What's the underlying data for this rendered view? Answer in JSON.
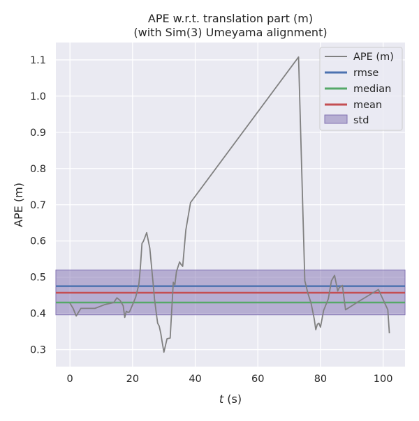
{
  "chart_data": {
    "type": "line",
    "title_line1": "APE w.r.t. translation part (m)",
    "title_line2": "(with Sim(3) Umeyama alignment)",
    "xlabel_italic": "t",
    "xlabel_rest": " (s)",
    "ylabel": "APE (m)",
    "xlim": [
      -4.5,
      107
    ],
    "ylim": [
      0.253,
      1.148
    ],
    "xticks": [
      0,
      20,
      40,
      60,
      80,
      100
    ],
    "yticks": [
      0.3,
      0.4,
      0.5,
      0.6,
      0.7,
      0.8,
      0.9,
      1.0,
      1.1
    ],
    "ytick_labels": [
      "0.3",
      "0.4",
      "0.5",
      "0.6",
      "0.7",
      "0.8",
      "0.9",
      "1.0",
      "1.1"
    ],
    "grid": true,
    "legend_position": "top-right",
    "colors": {
      "background": "#eaeaf2",
      "grid": "#ffffff",
      "ape": "#808080",
      "rmse": "#4c72b0",
      "median": "#55a868",
      "mean": "#c44e52",
      "std": "#8172b2"
    },
    "series": [
      {
        "name": "APE (m)",
        "x": [
          0,
          1,
          2,
          3.5,
          8,
          11,
          13,
          14,
          15,
          16,
          17,
          17.5,
          18,
          18.5,
          19,
          20,
          21,
          22,
          22.5,
          23,
          23.5,
          24.5,
          25.5,
          26.5,
          27,
          27.5,
          28,
          28.5,
          29,
          29.5,
          30,
          31,
          32,
          33,
          33.5,
          34,
          35,
          35.5,
          36,
          37,
          38.5,
          73,
          75,
          76,
          77,
          78,
          78.5,
          79,
          79.5,
          80,
          81,
          82.5,
          83.5,
          84.5,
          85.5,
          86,
          87,
          88,
          92,
          98.5,
          101.5,
          102
        ],
        "y": [
          0.428,
          0.414,
          0.393,
          0.414,
          0.414,
          0.424,
          0.428,
          0.43,
          0.443,
          0.436,
          0.421,
          0.389,
          0.406,
          0.403,
          0.404,
          0.424,
          0.445,
          0.48,
          0.528,
          0.593,
          0.6,
          0.623,
          0.58,
          0.488,
          0.44,
          0.405,
          0.373,
          0.365,
          0.345,
          0.318,
          0.293,
          0.33,
          0.332,
          0.486,
          0.479,
          0.515,
          0.542,
          0.535,
          0.53,
          0.63,
          0.706,
          1.108,
          0.49,
          0.455,
          0.428,
          0.385,
          0.355,
          0.37,
          0.373,
          0.362,
          0.408,
          0.44,
          0.49,
          0.505,
          0.462,
          0.471,
          0.477,
          0.41,
          0.432,
          0.466,
          0.41,
          0.345
        ]
      },
      {
        "name": "rmse",
        "value": 0.475
      },
      {
        "name": "median",
        "value": 0.43
      },
      {
        "name": "mean",
        "value": 0.457
      },
      {
        "name": "std",
        "range": [
          0.396,
          0.52
        ]
      }
    ]
  }
}
